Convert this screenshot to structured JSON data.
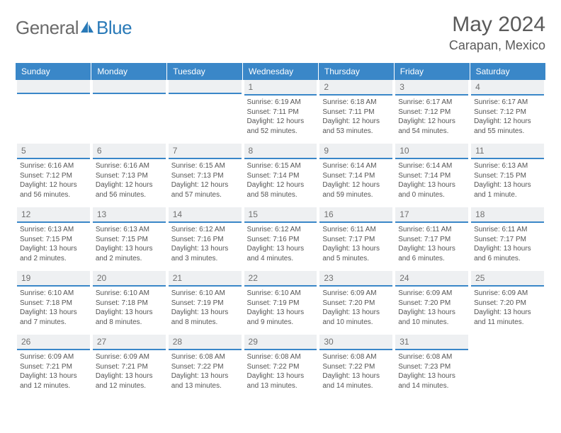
{
  "brand": {
    "part1": "General",
    "part2": "Blue"
  },
  "title": {
    "month": "May 2024",
    "location": "Carapan, Mexico"
  },
  "colors": {
    "header_bg": "#3a87c8",
    "header_text": "#ffffff",
    "daynum_bg": "#eef0f2",
    "daynum_border": "#3a87c8",
    "text": "#555555",
    "brand_gray": "#6b6b6b",
    "brand_blue": "#2a7ab8"
  },
  "daynames": [
    "Sunday",
    "Monday",
    "Tuesday",
    "Wednesday",
    "Thursday",
    "Friday",
    "Saturday"
  ],
  "weeks": [
    [
      null,
      null,
      null,
      {
        "n": "1",
        "sr": "Sunrise: 6:19 AM",
        "ss": "Sunset: 7:11 PM",
        "dl1": "Daylight: 12 hours",
        "dl2": "and 52 minutes."
      },
      {
        "n": "2",
        "sr": "Sunrise: 6:18 AM",
        "ss": "Sunset: 7:11 PM",
        "dl1": "Daylight: 12 hours",
        "dl2": "and 53 minutes."
      },
      {
        "n": "3",
        "sr": "Sunrise: 6:17 AM",
        "ss": "Sunset: 7:12 PM",
        "dl1": "Daylight: 12 hours",
        "dl2": "and 54 minutes."
      },
      {
        "n": "4",
        "sr": "Sunrise: 6:17 AM",
        "ss": "Sunset: 7:12 PM",
        "dl1": "Daylight: 12 hours",
        "dl2": "and 55 minutes."
      }
    ],
    [
      {
        "n": "5",
        "sr": "Sunrise: 6:16 AM",
        "ss": "Sunset: 7:12 PM",
        "dl1": "Daylight: 12 hours",
        "dl2": "and 56 minutes."
      },
      {
        "n": "6",
        "sr": "Sunrise: 6:16 AM",
        "ss": "Sunset: 7:13 PM",
        "dl1": "Daylight: 12 hours",
        "dl2": "and 56 minutes."
      },
      {
        "n": "7",
        "sr": "Sunrise: 6:15 AM",
        "ss": "Sunset: 7:13 PM",
        "dl1": "Daylight: 12 hours",
        "dl2": "and 57 minutes."
      },
      {
        "n": "8",
        "sr": "Sunrise: 6:15 AM",
        "ss": "Sunset: 7:14 PM",
        "dl1": "Daylight: 12 hours",
        "dl2": "and 58 minutes."
      },
      {
        "n": "9",
        "sr": "Sunrise: 6:14 AM",
        "ss": "Sunset: 7:14 PM",
        "dl1": "Daylight: 12 hours",
        "dl2": "and 59 minutes."
      },
      {
        "n": "10",
        "sr": "Sunrise: 6:14 AM",
        "ss": "Sunset: 7:14 PM",
        "dl1": "Daylight: 13 hours",
        "dl2": "and 0 minutes."
      },
      {
        "n": "11",
        "sr": "Sunrise: 6:13 AM",
        "ss": "Sunset: 7:15 PM",
        "dl1": "Daylight: 13 hours",
        "dl2": "and 1 minute."
      }
    ],
    [
      {
        "n": "12",
        "sr": "Sunrise: 6:13 AM",
        "ss": "Sunset: 7:15 PM",
        "dl1": "Daylight: 13 hours",
        "dl2": "and 2 minutes."
      },
      {
        "n": "13",
        "sr": "Sunrise: 6:13 AM",
        "ss": "Sunset: 7:15 PM",
        "dl1": "Daylight: 13 hours",
        "dl2": "and 2 minutes."
      },
      {
        "n": "14",
        "sr": "Sunrise: 6:12 AM",
        "ss": "Sunset: 7:16 PM",
        "dl1": "Daylight: 13 hours",
        "dl2": "and 3 minutes."
      },
      {
        "n": "15",
        "sr": "Sunrise: 6:12 AM",
        "ss": "Sunset: 7:16 PM",
        "dl1": "Daylight: 13 hours",
        "dl2": "and 4 minutes."
      },
      {
        "n": "16",
        "sr": "Sunrise: 6:11 AM",
        "ss": "Sunset: 7:17 PM",
        "dl1": "Daylight: 13 hours",
        "dl2": "and 5 minutes."
      },
      {
        "n": "17",
        "sr": "Sunrise: 6:11 AM",
        "ss": "Sunset: 7:17 PM",
        "dl1": "Daylight: 13 hours",
        "dl2": "and 6 minutes."
      },
      {
        "n": "18",
        "sr": "Sunrise: 6:11 AM",
        "ss": "Sunset: 7:17 PM",
        "dl1": "Daylight: 13 hours",
        "dl2": "and 6 minutes."
      }
    ],
    [
      {
        "n": "19",
        "sr": "Sunrise: 6:10 AM",
        "ss": "Sunset: 7:18 PM",
        "dl1": "Daylight: 13 hours",
        "dl2": "and 7 minutes."
      },
      {
        "n": "20",
        "sr": "Sunrise: 6:10 AM",
        "ss": "Sunset: 7:18 PM",
        "dl1": "Daylight: 13 hours",
        "dl2": "and 8 minutes."
      },
      {
        "n": "21",
        "sr": "Sunrise: 6:10 AM",
        "ss": "Sunset: 7:19 PM",
        "dl1": "Daylight: 13 hours",
        "dl2": "and 8 minutes."
      },
      {
        "n": "22",
        "sr": "Sunrise: 6:10 AM",
        "ss": "Sunset: 7:19 PM",
        "dl1": "Daylight: 13 hours",
        "dl2": "and 9 minutes."
      },
      {
        "n": "23",
        "sr": "Sunrise: 6:09 AM",
        "ss": "Sunset: 7:20 PM",
        "dl1": "Daylight: 13 hours",
        "dl2": "and 10 minutes."
      },
      {
        "n": "24",
        "sr": "Sunrise: 6:09 AM",
        "ss": "Sunset: 7:20 PM",
        "dl1": "Daylight: 13 hours",
        "dl2": "and 10 minutes."
      },
      {
        "n": "25",
        "sr": "Sunrise: 6:09 AM",
        "ss": "Sunset: 7:20 PM",
        "dl1": "Daylight: 13 hours",
        "dl2": "and 11 minutes."
      }
    ],
    [
      {
        "n": "26",
        "sr": "Sunrise: 6:09 AM",
        "ss": "Sunset: 7:21 PM",
        "dl1": "Daylight: 13 hours",
        "dl2": "and 12 minutes."
      },
      {
        "n": "27",
        "sr": "Sunrise: 6:09 AM",
        "ss": "Sunset: 7:21 PM",
        "dl1": "Daylight: 13 hours",
        "dl2": "and 12 minutes."
      },
      {
        "n": "28",
        "sr": "Sunrise: 6:08 AM",
        "ss": "Sunset: 7:22 PM",
        "dl1": "Daylight: 13 hours",
        "dl2": "and 13 minutes."
      },
      {
        "n": "29",
        "sr": "Sunrise: 6:08 AM",
        "ss": "Sunset: 7:22 PM",
        "dl1": "Daylight: 13 hours",
        "dl2": "and 13 minutes."
      },
      {
        "n": "30",
        "sr": "Sunrise: 6:08 AM",
        "ss": "Sunset: 7:22 PM",
        "dl1": "Daylight: 13 hours",
        "dl2": "and 14 minutes."
      },
      {
        "n": "31",
        "sr": "Sunrise: 6:08 AM",
        "ss": "Sunset: 7:23 PM",
        "dl1": "Daylight: 13 hours",
        "dl2": "and 14 minutes."
      },
      null
    ]
  ]
}
